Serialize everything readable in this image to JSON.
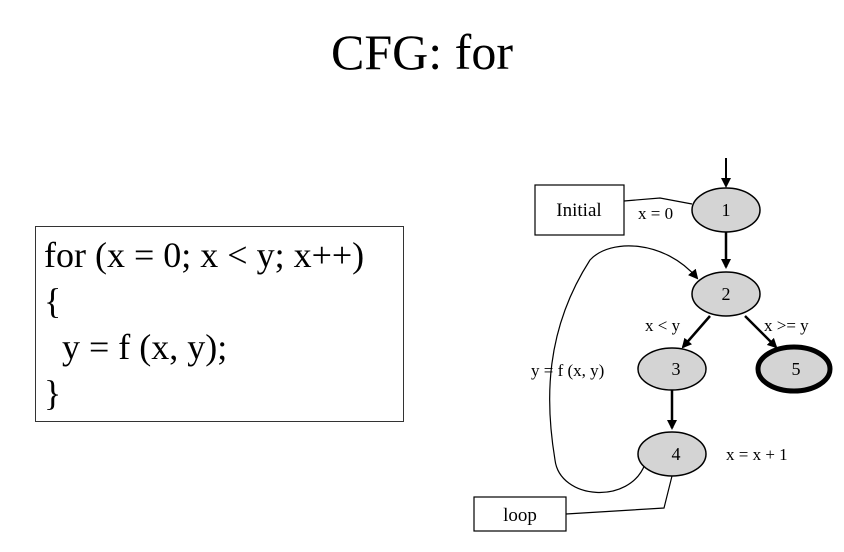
{
  "title": "CFG: for",
  "code_lines": [
    "for (x = 0; x < y; x++)",
    "{",
    "  y = f (x, y);",
    "}"
  ],
  "nodes": {
    "n1": "1",
    "n2": "2",
    "n3": "3",
    "n4": "4",
    "n5": "5"
  },
  "labels": {
    "initial_box": "Initial",
    "loop_box": "loop",
    "x_eq_0": "x = 0",
    "x_lt_y": "x < y",
    "x_ge_y": "x >= y",
    "y_eq_f": "y = f (x, y)",
    "x_inc": "x = x + 1"
  },
  "colors": {
    "node_fill": "#d4d4d4",
    "stroke": "#000000"
  }
}
